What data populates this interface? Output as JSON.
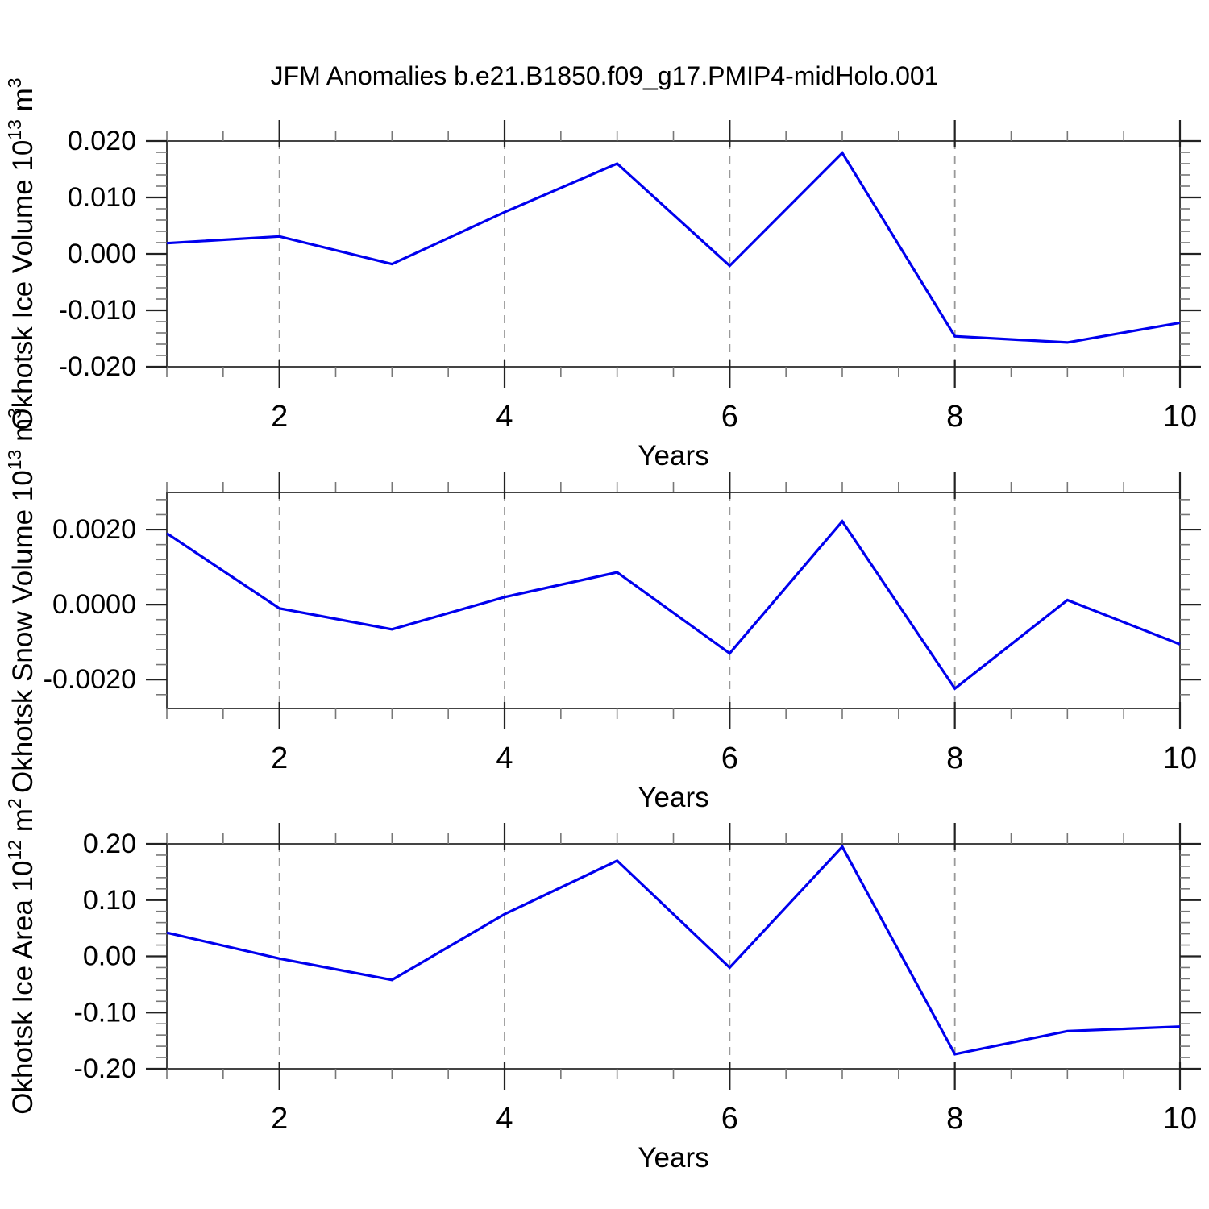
{
  "title": "JFM Anomalies b.e21.B1850.f09_g17.PMIP4-midHolo.001",
  "colors": {
    "line": "#0000ee",
    "grid": "#999999",
    "frame": "#444444",
    "tick_major": "#222222",
    "tick_minor": "#777777",
    "text": "#000000"
  },
  "chart_data": [
    {
      "type": "line",
      "ylabel": "Okhotsk Ice Volume 10^13 m^3",
      "ylabel_parts": [
        {
          "t": "Okhotsk Ice Volume 10"
        },
        {
          "sup": "13"
        },
        {
          "t": " m"
        },
        {
          "sup": "3"
        }
      ],
      "x": [
        1,
        2,
        3,
        4,
        5,
        6,
        7,
        8,
        9,
        10
      ],
      "y": [
        0.0019,
        0.0031,
        -0.0018,
        0.0074,
        0.016,
        -0.0021,
        0.0179,
        -0.0146,
        -0.0157,
        -0.0122
      ],
      "ylim": [
        -0.02,
        0.02
      ],
      "yticks": [
        {
          "v": 0.02,
          "label": "0.020"
        },
        {
          "v": 0.01,
          "label": "0.010"
        },
        {
          "v": 0.0,
          "label": "0.000"
        },
        {
          "v": -0.01,
          "label": "-0.010"
        },
        {
          "v": -0.02,
          "label": "-0.020"
        }
      ],
      "y_minor_step": 0.002,
      "xlim": [
        1,
        10
      ],
      "xticks": [
        {
          "v": 2,
          "label": "2"
        },
        {
          "v": 4,
          "label": "4"
        },
        {
          "v": 6,
          "label": "6"
        },
        {
          "v": 8,
          "label": "8"
        },
        {
          "v": 10,
          "label": "10"
        }
      ],
      "x_minor_step": 0.5,
      "grid_x": [
        2,
        4,
        6,
        8
      ],
      "xlabel": "Years"
    },
    {
      "type": "line",
      "ylabel": "Okhotsk Snow Volume 10^13 m^3",
      "ylabel_parts": [
        {
          "t": "Okhotsk Snow Volume 10"
        },
        {
          "sup": "13"
        },
        {
          "t": " m"
        },
        {
          "sup": "3"
        }
      ],
      "x": [
        1,
        2,
        3,
        4,
        5,
        6,
        7,
        8,
        9,
        10
      ],
      "y": [
        0.0019,
        -0.0001,
        -0.00066,
        0.0002,
        0.00086,
        -0.0013,
        0.00222,
        -0.00224,
        0.00012,
        -0.00106
      ],
      "ylim": [
        -0.00277,
        0.00299
      ],
      "yticks": [
        {
          "v": 0.002,
          "label": "0.0020"
        },
        {
          "v": 0.0,
          "label": "0.0000"
        },
        {
          "v": -0.002,
          "label": "-0.0020"
        }
      ],
      "y_minor_step": 0.0004,
      "xlim": [
        1,
        10
      ],
      "xticks": [
        {
          "v": 2,
          "label": "2"
        },
        {
          "v": 4,
          "label": "4"
        },
        {
          "v": 6,
          "label": "6"
        },
        {
          "v": 8,
          "label": "8"
        },
        {
          "v": 10,
          "label": "10"
        }
      ],
      "x_minor_step": 0.5,
      "grid_x": [
        2,
        4,
        6,
        8
      ],
      "xlabel": "Years"
    },
    {
      "type": "line",
      "ylabel": "Okhotsk Ice Area 10^12 m^2",
      "ylabel_parts": [
        {
          "t": "Okhotsk Ice Area 10"
        },
        {
          "sup": "12"
        },
        {
          "t": " m"
        },
        {
          "sup": "2"
        }
      ],
      "x": [
        1,
        2,
        3,
        4,
        5,
        6,
        7,
        8,
        9,
        10
      ],
      "y": [
        0.042,
        -0.004,
        -0.042,
        0.075,
        0.17,
        -0.02,
        0.195,
        -0.174,
        -0.133,
        -0.125
      ],
      "ylim": [
        -0.2,
        0.2
      ],
      "yticks": [
        {
          "v": 0.2,
          "label": "0.20"
        },
        {
          "v": 0.1,
          "label": "0.10"
        },
        {
          "v": 0.0,
          "label": "0.00"
        },
        {
          "v": -0.1,
          "label": "-0.10"
        },
        {
          "v": -0.2,
          "label": "-0.20"
        }
      ],
      "y_minor_step": 0.02,
      "xlim": [
        1,
        10
      ],
      "xticks": [
        {
          "v": 2,
          "label": "2"
        },
        {
          "v": 4,
          "label": "4"
        },
        {
          "v": 6,
          "label": "6"
        },
        {
          "v": 8,
          "label": "8"
        },
        {
          "v": 10,
          "label": "10"
        }
      ],
      "x_minor_step": 0.5,
      "grid_x": [
        2,
        4,
        6,
        8
      ],
      "xlabel": "Years"
    }
  ]
}
